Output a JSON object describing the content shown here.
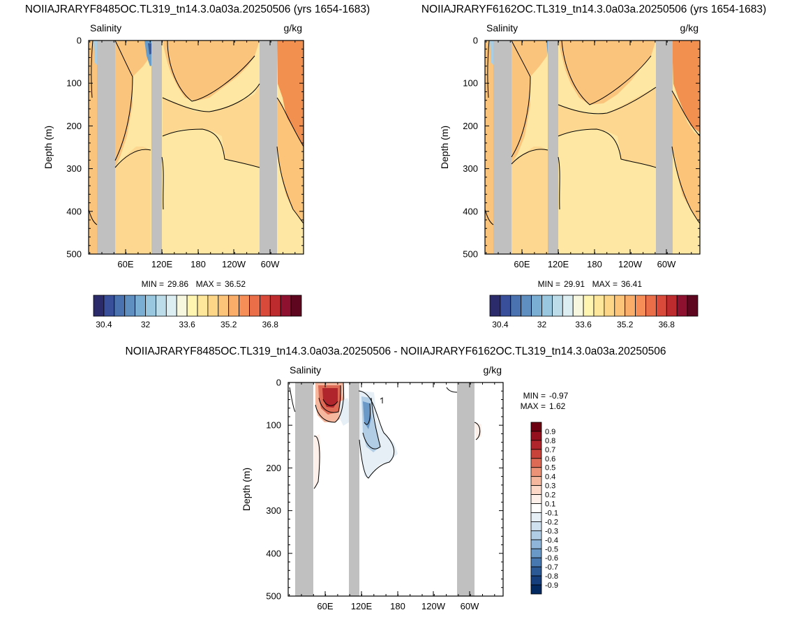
{
  "chart_data": [
    {
      "type": "heatmap",
      "title": "NOIIAJRARYF8485OC.TL319_tn14.3.0a03a.20250506 (yrs 1654-1683)",
      "left_label": "Salinity",
      "right_label": "g/kg",
      "ylabel": "Depth (m)",
      "y_ticks": [
        "0",
        "100",
        "200",
        "300",
        "400",
        "500"
      ],
      "x_ticks": [
        "60E",
        "120E",
        "180",
        "120W",
        "60W"
      ],
      "min_label": "MIN =",
      "min_value": "29.86",
      "max_label": "MAX =",
      "max_value": "36.52",
      "colorbar_labels": [
        "30.4",
        "32",
        "33.6",
        "35.2",
        "36.8"
      ]
    },
    {
      "type": "heatmap",
      "title": "NOIIAJRARYF6162OC.TL319_tn14.3.0a03a.20250506 (yrs 1654-1683)",
      "left_label": "Salinity",
      "right_label": "g/kg",
      "ylabel": "Depth (m)",
      "y_ticks": [
        "0",
        "100",
        "200",
        "300",
        "400",
        "500"
      ],
      "x_ticks": [
        "60E",
        "120E",
        "180",
        "120W",
        "60W"
      ],
      "min_label": "MIN =",
      "min_value": "29.91",
      "max_label": "MAX =",
      "max_value": "36.41",
      "colorbar_labels": [
        "30.4",
        "32",
        "33.6",
        "35.2",
        "36.8"
      ]
    },
    {
      "type": "heatmap",
      "title": "NOIIAJRARYF8485OC.TL319_tn14.3.0a03a.20250506 - NOIIAJRARYF6162OC.TL319_tn14.3.0a03a.20250506",
      "left_label": "Salinity",
      "right_label": "g/kg",
      "ylabel": "Depth (m)",
      "y_ticks": [
        "0",
        "100",
        "200",
        "300",
        "400",
        "500"
      ],
      "x_ticks": [
        "60E",
        "120E",
        "180",
        "120W",
        "60W"
      ],
      "min_label": "MIN =",
      "min_value": "-0.97",
      "max_label": "MAX =",
      "max_value": "1.62",
      "colorbar_labels": [
        "0.9",
        "0.8",
        "0.7",
        "0.6",
        "0.5",
        "0.4",
        "0.3",
        "0.2",
        "0.1",
        "-0.1",
        "-0.2",
        "-0.3",
        "-0.4",
        "-0.5",
        "-0.6",
        "-0.7",
        "-0.8",
        "-0.9"
      ]
    }
  ],
  "colors": {
    "salinity_scale": [
      "#2b2a6b",
      "#3a4f9a",
      "#4a72b0",
      "#5e8fc0",
      "#7aaed3",
      "#9ac7e0",
      "#bcdcea",
      "#ddeef2",
      "#f7f7df",
      "#fff4b0",
      "#fee79a",
      "#fdd787",
      "#fcc478",
      "#faad68",
      "#f58f57",
      "#ea6e47",
      "#d94a3a",
      "#be2b2f",
      "#8e1230",
      "#5e0620"
    ],
    "diff_scale": [
      "#6b0010",
      "#95101e",
      "#b0252b",
      "#c84339",
      "#dc6a55",
      "#ec9277",
      "#f5b79e",
      "#fbd8c8",
      "#fdf0ea",
      "#ffffff",
      "#e6eff6",
      "#cfe0ef",
      "#b1cde5",
      "#8fb5d9",
      "#6a98c7",
      "#4878b0",
      "#2a5996",
      "#143f7c",
      "#032a60"
    ],
    "land": "#c0c0c0"
  }
}
